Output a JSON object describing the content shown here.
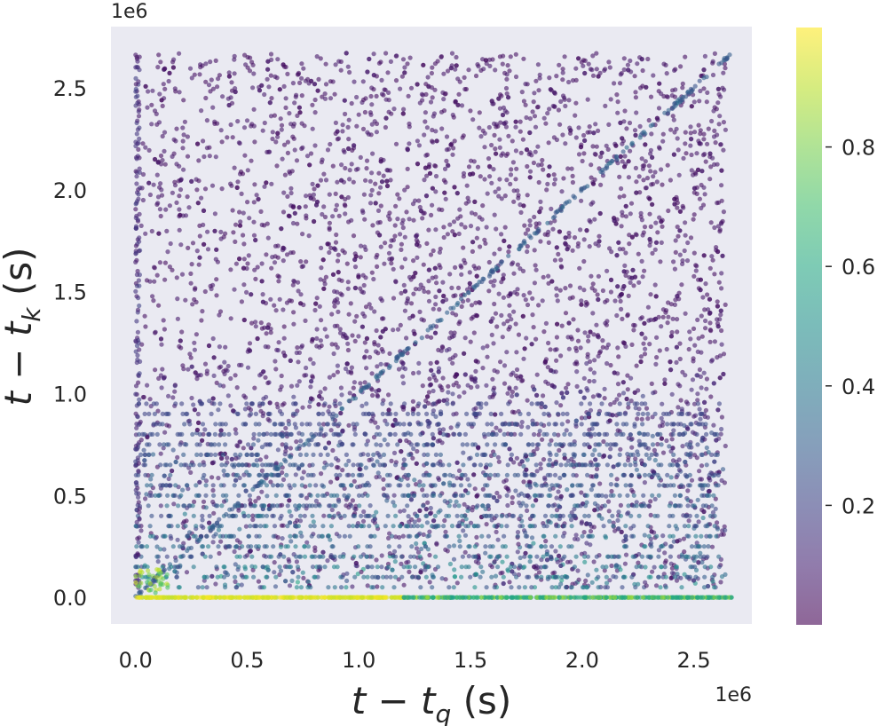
{
  "chart_data": {
    "type": "scatter",
    "xlabel": {
      "pre": "t − t",
      "sub": "q",
      "post": " (s)"
    },
    "ylabel": {
      "pre": "t − t",
      "sub": "k",
      "post": " (s)"
    },
    "x_offset_text": "1e6",
    "y_offset_text": "1e6",
    "xlim": [
      -0.11,
      2.76
    ],
    "ylim": [
      -0.13,
      2.8
    ],
    "x_ticks": [
      {
        "value": 0.0,
        "label": "0.0"
      },
      {
        "value": 0.5,
        "label": "0.5"
      },
      {
        "value": 1.0,
        "label": "1.0"
      },
      {
        "value": 1.5,
        "label": "1.5"
      },
      {
        "value": 2.0,
        "label": "2.0"
      },
      {
        "value": 2.5,
        "label": "2.5"
      }
    ],
    "y_ticks": [
      {
        "value": 0.0,
        "label": "0.0"
      },
      {
        "value": 0.5,
        "label": "0.5"
      },
      {
        "value": 1.0,
        "label": "1.0"
      },
      {
        "value": 1.5,
        "label": "1.5"
      },
      {
        "value": 2.0,
        "label": "2.0"
      },
      {
        "value": 2.5,
        "label": "2.5"
      }
    ],
    "colorbar": {
      "colormap": "viridis",
      "alpha": 0.6,
      "range": [
        0.0,
        1.0
      ],
      "ticks": [
        {
          "value": 0.2,
          "label": "0.2"
        },
        {
          "value": 0.4,
          "label": "0.4"
        },
        {
          "value": 0.6,
          "label": "0.6"
        },
        {
          "value": 0.8,
          "label": "0.8"
        }
      ]
    },
    "data_extent": {
      "x": [
        0,
        2.67
      ],
      "y": [
        0,
        2.67
      ]
    },
    "style": {
      "background": "#eaeaf2",
      "grid": false,
      "marker": "small circles",
      "point_density": "very dense"
    },
    "color_pattern": [
      {
        "region": "row y=0 (t = t_k)",
        "x_range": [
          0,
          1.2
        ],
        "value": 0.97
      },
      {
        "region": "row y=0 (t = t_k)",
        "x_range": [
          1.2,
          2.67
        ],
        "value": 0.62
      },
      {
        "region": "diagonal y = x",
        "value": 0.3
      },
      {
        "region": "low y rows (y < 0.8)",
        "value": 0.45
      },
      {
        "region": "upper field (y > 1.3)",
        "value": 0.04
      }
    ]
  }
}
